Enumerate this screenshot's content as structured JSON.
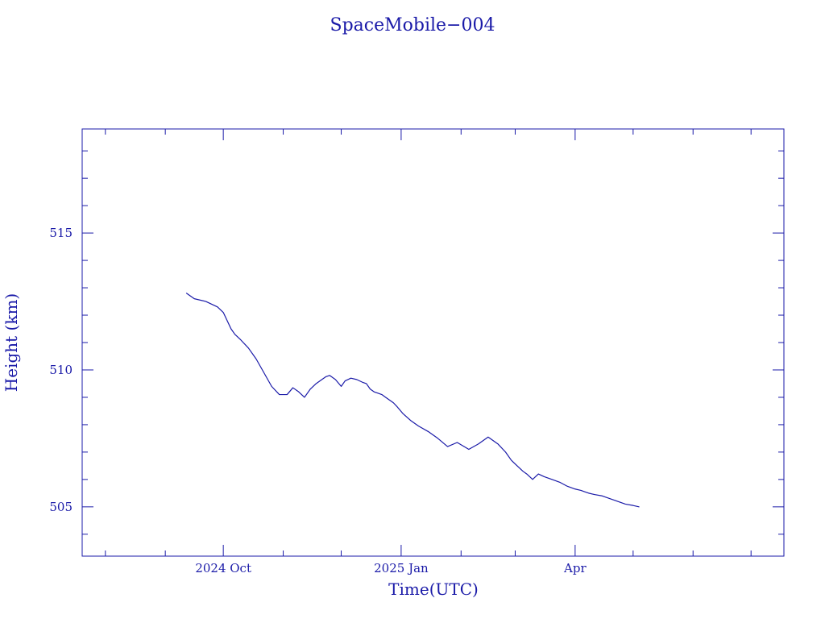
{
  "colors": {
    "ink": "#1a1aa8",
    "background": "#ffffff"
  },
  "chart_data": {
    "type": "line",
    "title": "SpaceMobile−004",
    "xlabel": "Time(UTC)",
    "ylabel": "Height (km)",
    "x_type": "date",
    "xlim": [
      "2024-07-20",
      "2025-07-18"
    ],
    "ylim": [
      503.2,
      518.8
    ],
    "grid": false,
    "x_ticks": [
      {
        "value": "2024-10-01",
        "label": "2024 Oct"
      },
      {
        "value": "2025-01-01",
        "label": "2025 Jan"
      },
      {
        "value": "2025-04-01",
        "label": "Apr"
      }
    ],
    "x_minor_ticks": [
      "2024-08-01",
      "2024-09-01",
      "2024-11-01",
      "2024-12-01",
      "2025-02-01",
      "2025-03-01",
      "2025-05-01",
      "2025-06-01",
      "2025-07-01"
    ],
    "y_ticks": [
      {
        "value": 505,
        "label": "505"
      },
      {
        "value": 510,
        "label": "510"
      },
      {
        "value": 515,
        "label": "515"
      }
    ],
    "y_minor_ticks": [
      504,
      506,
      507,
      508,
      509,
      511,
      512,
      513,
      514,
      516,
      517,
      518
    ],
    "series": [
      {
        "color": "#1a1aa8",
        "x": [
          "2024-09-12",
          "2024-09-16",
          "2024-09-22",
          "2024-09-28",
          "2024-10-01",
          "2024-10-05",
          "2024-10-07",
          "2024-10-10",
          "2024-10-14",
          "2024-10-18",
          "2024-10-22",
          "2024-10-26",
          "2024-10-30",
          "2024-11-03",
          "2024-11-06",
          "2024-11-09",
          "2024-11-12",
          "2024-11-15",
          "2024-11-18",
          "2024-11-21",
          "2024-11-23",
          "2024-11-25",
          "2024-11-28",
          "2024-12-01",
          "2024-12-03",
          "2024-12-06",
          "2024-12-09",
          "2024-12-12",
          "2024-12-14",
          "2024-12-16",
          "2024-12-18",
          "2024-12-20",
          "2024-12-22",
          "2024-12-24",
          "2024-12-26",
          "2024-12-28",
          "2024-12-30",
          "2025-01-02",
          "2025-01-06",
          "2025-01-10",
          "2025-01-15",
          "2025-01-20",
          "2025-01-25",
          "2025-01-30",
          "2025-02-05",
          "2025-02-10",
          "2025-02-15",
          "2025-02-20",
          "2025-02-24",
          "2025-02-27",
          "2025-03-02",
          "2025-03-05",
          "2025-03-07",
          "2025-03-10",
          "2025-03-13",
          "2025-03-16",
          "2025-03-20",
          "2025-03-24",
          "2025-03-28",
          "2025-04-01",
          "2025-04-04",
          "2025-04-06",
          "2025-04-08",
          "2025-04-11",
          "2025-04-15",
          "2025-04-19",
          "2025-04-23",
          "2025-04-27",
          "2025-05-01",
          "2025-05-04"
        ],
        "y": [
          512.8,
          512.6,
          512.5,
          512.3,
          512.1,
          511.5,
          511.3,
          511.1,
          510.8,
          510.4,
          509.9,
          509.4,
          509.1,
          509.1,
          509.35,
          509.2,
          509.0,
          509.3,
          509.5,
          509.65,
          509.75,
          509.8,
          509.65,
          509.4,
          509.6,
          509.7,
          509.65,
          509.55,
          509.5,
          509.3,
          509.2,
          509.15,
          509.1,
          509.0,
          508.9,
          508.8,
          508.65,
          508.4,
          508.15,
          507.95,
          507.75,
          507.5,
          507.2,
          507.35,
          507.1,
          507.3,
          507.55,
          507.3,
          507.0,
          506.7,
          506.5,
          506.3,
          506.2,
          506.0,
          506.2,
          506.1,
          506.0,
          505.9,
          505.75,
          505.65,
          505.6,
          505.55,
          505.5,
          505.45,
          505.4,
          505.3,
          505.2,
          505.1,
          505.05,
          505.0
        ]
      }
    ]
  }
}
